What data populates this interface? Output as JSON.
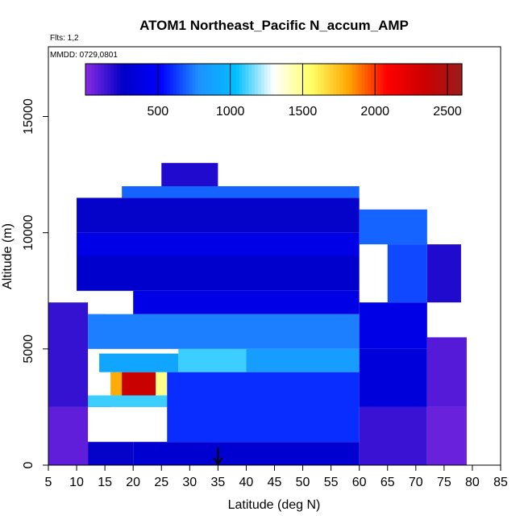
{
  "chart_data": {
    "type": "heatmap",
    "title": "ATOM1 Northeast_Pacific N_accum_AMP",
    "notes": [
      "Flts: 1,2",
      "MMDD: 0729,0801"
    ],
    "xlabel": "Latitude (deg N)",
    "ylabel": "Altitude (m)",
    "xlim": [
      5,
      85
    ],
    "ylim": [
      0,
      18000
    ],
    "x_ticks": [
      5,
      10,
      15,
      20,
      25,
      30,
      35,
      40,
      45,
      50,
      55,
      60,
      65,
      70,
      75,
      80,
      85
    ],
    "y_ticks": [
      0,
      5000,
      10000,
      15000
    ],
    "colorbar": {
      "range": [
        0,
        2600
      ],
      "ticks": [
        500,
        1000,
        1500,
        2000,
        2500
      ],
      "colors": [
        "#8a2be2",
        "#0000c8",
        "#0000ff",
        "#1e90ff",
        "#00bfff",
        "#ffffff",
        "#ffff66",
        "#ffa500",
        "#ff0000",
        "#cc0000",
        "#9b1c1c"
      ]
    },
    "marker": {
      "latitude": 35,
      "label": "arrow"
    },
    "cells": [
      {
        "lat": [
          5,
          12
        ],
        "alt": [
          0,
          2500
        ],
        "value": 80
      },
      {
        "lat": [
          12,
          20
        ],
        "alt": [
          0,
          1000
        ],
        "value": 250
      },
      {
        "lat": [
          20,
          60
        ],
        "alt": [
          0,
          1000
        ],
        "value": 300
      },
      {
        "lat": [
          60,
          72
        ],
        "alt": [
          0,
          2500
        ],
        "value": 150
      },
      {
        "lat": [
          72,
          79
        ],
        "alt": [
          0,
          2500
        ],
        "value": 60
      },
      {
        "lat": [
          5,
          12
        ],
        "alt": [
          2500,
          7000
        ],
        "value": 160
      },
      {
        "lat": [
          12,
          16
        ],
        "alt": [
          2500,
          3000
        ],
        "value": 700
      },
      {
        "lat": [
          16,
          18
        ],
        "alt": [
          3000,
          4000
        ],
        "value": 1800
      },
      {
        "lat": [
          18,
          24
        ],
        "alt": [
          3000,
          4000
        ],
        "value": 2350
      },
      {
        "lat": [
          24,
          26
        ],
        "alt": [
          3000,
          4000
        ],
        "value": 1500
      },
      {
        "lat": [
          12,
          26
        ],
        "alt": [
          2500,
          3000
        ],
        "value": 1100
      },
      {
        "lat": [
          14,
          28
        ],
        "alt": [
          4000,
          4800
        ],
        "value": 900
      },
      {
        "lat": [
          28,
          40
        ],
        "alt": [
          4000,
          5000
        ],
        "value": 1100
      },
      {
        "lat": [
          40,
          60
        ],
        "alt": [
          4000,
          5000
        ],
        "value": 850
      },
      {
        "lat": [
          26,
          60
        ],
        "alt": [
          1000,
          4000
        ],
        "value": 600
      },
      {
        "lat": [
          60,
          72
        ],
        "alt": [
          2500,
          5000
        ],
        "value": 350
      },
      {
        "lat": [
          72,
          79
        ],
        "alt": [
          2500,
          5500
        ],
        "value": 100
      },
      {
        "lat": [
          12,
          60
        ],
        "alt": [
          5000,
          6500
        ],
        "value": 750
      },
      {
        "lat": [
          60,
          72
        ],
        "alt": [
          5000,
          7000
        ],
        "value": 400
      },
      {
        "lat": [
          15,
          20
        ],
        "alt": [
          6500,
          7000
        ],
        "value": 1300
      },
      {
        "lat": [
          20,
          60
        ],
        "alt": [
          6500,
          7500
        ],
        "value": 400
      },
      {
        "lat": [
          10,
          60
        ],
        "alt": [
          7500,
          9000
        ],
        "value": 280
      },
      {
        "lat": [
          65,
          72
        ],
        "alt": [
          7000,
          9500
        ],
        "value": 650
      },
      {
        "lat": [
          72,
          78
        ],
        "alt": [
          7000,
          9500
        ],
        "value": 200
      },
      {
        "lat": [
          10,
          60
        ],
        "alt": [
          9000,
          10000
        ],
        "value": 400
      },
      {
        "lat": [
          60,
          72
        ],
        "alt": [
          9500,
          11000
        ],
        "value": 700
      },
      {
        "lat": [
          10,
          60
        ],
        "alt": [
          10000,
          11500
        ],
        "value": 250
      },
      {
        "lat": [
          18,
          60
        ],
        "alt": [
          11500,
          12000
        ],
        "value": 700
      },
      {
        "lat": [
          25,
          35
        ],
        "alt": [
          12000,
          13000
        ],
        "value": 200
      }
    ]
  }
}
